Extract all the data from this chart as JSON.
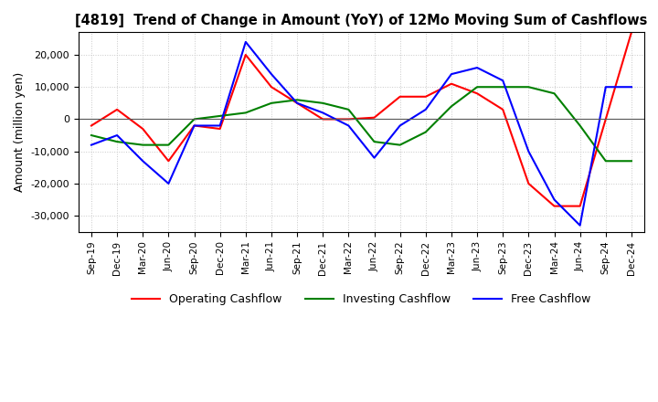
{
  "title": "[4819]  Trend of Change in Amount (YoY) of 12Mo Moving Sum of Cashflows",
  "ylabel": "Amount (million yen)",
  "x_labels": [
    "Sep-19",
    "Dec-19",
    "Mar-20",
    "Jun-20",
    "Sep-20",
    "Dec-20",
    "Mar-21",
    "Jun-21",
    "Sep-21",
    "Dec-21",
    "Mar-22",
    "Jun-22",
    "Sep-22",
    "Dec-22",
    "Mar-23",
    "Jun-23",
    "Sep-23",
    "Dec-23",
    "Mar-24",
    "Jun-24",
    "Sep-24",
    "Dec-24"
  ],
  "operating": [
    -2000,
    3000,
    -3000,
    -13000,
    -2000,
    -3000,
    20000,
    10000,
    5000,
    0,
    0,
    500,
    7000,
    7000,
    11000,
    8000,
    3000,
    -20000,
    -27000,
    -27000,
    0,
    27000
  ],
  "investing": [
    -5000,
    -7000,
    -8000,
    -8000,
    0,
    1000,
    2000,
    5000,
    6000,
    5000,
    3000,
    -7000,
    -8000,
    -4000,
    4000,
    10000,
    10000,
    10000,
    8000,
    -2000,
    -13000,
    -13000
  ],
  "free": [
    -8000,
    -5000,
    -13000,
    -20000,
    -2000,
    -2000,
    24000,
    14000,
    5000,
    2000,
    -2000,
    -12000,
    -2000,
    3000,
    14000,
    16000,
    12000,
    -10000,
    -25000,
    -33000,
    10000,
    10000
  ],
  "operating_color": "#ff0000",
  "investing_color": "#008000",
  "free_color": "#0000ff",
  "ylim": [
    -35000,
    27000
  ],
  "yticks": [
    -30000,
    -20000,
    -10000,
    0,
    10000,
    20000
  ],
  "background_color": "#ffffff",
  "grid_color": "#c8c8c8"
}
